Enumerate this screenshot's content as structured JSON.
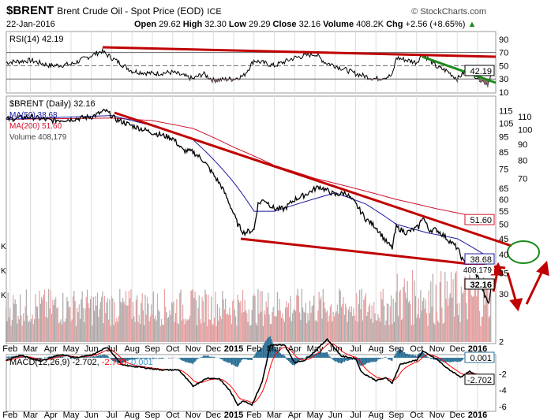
{
  "header": {
    "symbol": "$BRENT",
    "name": "Brent Crude Oil - Spot Price (EOD)",
    "exchange": "ICE",
    "copyright": "© StockCharts.com",
    "date": "22-Jan-2016",
    "open_label": "Open",
    "open": "29.62",
    "high_label": "High",
    "high": "32.30",
    "low_label": "Low",
    "low": "29.29",
    "close_label": "Close",
    "close": "32.16",
    "volume_label": "Volume",
    "volume": "408.2K",
    "chg_label": "Chg",
    "chg": "+2.56 (+8.65%)"
  },
  "colors": {
    "price": "#000000",
    "ma50": "#1a1aa0",
    "ma200": "#d0102a",
    "volume": "#e8a0a0",
    "macd": "#000000",
    "signal": "#ff0000",
    "hist": "#2a6f95",
    "trend": "#c00000",
    "green": "#1a8a1a"
  },
  "chart_data": [
    {
      "type": "line",
      "title": "RSI(14) 42.19",
      "label": "RSI(14)",
      "value": "42.19",
      "yticks": [
        "90",
        "70",
        "50",
        "30",
        "10"
      ],
      "ylim": [
        10,
        90
      ],
      "levels": [
        70,
        50,
        30
      ],
      "values": [
        [
          0.8,
          55
        ],
        [
          2,
          58
        ],
        [
          3,
          50
        ],
        [
          4,
          52
        ],
        [
          5.5,
          72
        ],
        [
          6,
          62
        ],
        [
          7,
          42
        ],
        [
          8,
          38
        ],
        [
          9,
          40
        ],
        [
          10,
          30
        ],
        [
          10.5,
          38
        ],
        [
          11,
          28
        ],
        [
          12,
          30
        ],
        [
          12.5,
          35
        ],
        [
          13,
          58
        ],
        [
          14,
          50
        ],
        [
          15,
          62
        ],
        [
          16,
          68
        ],
        [
          16.5,
          55
        ],
        [
          17,
          50
        ],
        [
          18,
          38
        ],
        [
          19,
          30
        ],
        [
          19.8,
          35
        ],
        [
          20,
          62
        ],
        [
          21,
          55
        ],
        [
          21.3,
          68
        ],
        [
          22,
          48
        ],
        [
          22.5,
          42
        ],
        [
          23,
          30
        ],
        [
          23.5,
          45
        ],
        [
          24,
          32
        ],
        [
          24.5,
          22
        ],
        [
          24.7,
          42.19
        ]
      ]
    },
    {
      "type": "line",
      "title": "$BRENT (Daily) 32.16",
      "price_label": "$BRENT (Daily) 32.16",
      "ma50_label": "MA(50) 38.68",
      "ma200_label": "MA(200) 51.60",
      "volume_label": "Volume 408,179",
      "yticks": [
        "115",
        "110",
        "105",
        "100",
        "95",
        "90",
        "85",
        "80",
        "75",
        "70",
        "65",
        "60",
        "55",
        "50",
        "45",
        "40",
        "35",
        "30"
      ],
      "scale": "log",
      "tags": {
        "ma200": "51.60",
        "ma50": "38.68",
        "volume": "408,179",
        "close": "32.16"
      },
      "price": [
        [
          0.8,
          108
        ],
        [
          2,
          110
        ],
        [
          3,
          107
        ],
        [
          4,
          108
        ],
        [
          5,
          110
        ],
        [
          5.7,
          115
        ],
        [
          6.2,
          108
        ],
        [
          7,
          103
        ],
        [
          8,
          98
        ],
        [
          9,
          94
        ],
        [
          9.5,
          86
        ],
        [
          10,
          85
        ],
        [
          10.5,
          80
        ],
        [
          11,
          72
        ],
        [
          11.4,
          66
        ],
        [
          11.8,
          58
        ],
        [
          12.2,
          50
        ],
        [
          12.5,
          47
        ],
        [
          13,
          48
        ],
        [
          13.2,
          58
        ],
        [
          13.5,
          60
        ],
        [
          14,
          56
        ],
        [
          14.5,
          56
        ],
        [
          15,
          60
        ],
        [
          15.5,
          62
        ],
        [
          16.2,
          66
        ],
        [
          16.6,
          64
        ],
        [
          17,
          62
        ],
        [
          17.5,
          63
        ],
        [
          18,
          58
        ],
        [
          18.5,
          52
        ],
        [
          19,
          49
        ],
        [
          19.5,
          44
        ],
        [
          19.8,
          42
        ],
        [
          20,
          49
        ],
        [
          20.5,
          47
        ],
        [
          21.1,
          49
        ],
        [
          21.3,
          53
        ],
        [
          21.6,
          48
        ],
        [
          22,
          48
        ],
        [
          22.5,
          45
        ],
        [
          23,
          42
        ],
        [
          23.3,
          38
        ],
        [
          23.7,
          37
        ],
        [
          24.1,
          33
        ],
        [
          24.4,
          29
        ],
        [
          24.55,
          28
        ],
        [
          24.7,
          32.16
        ]
      ],
      "ma50": [
        [
          0.8,
          108
        ],
        [
          6,
          111
        ],
        [
          8,
          103
        ],
        [
          10,
          93
        ],
        [
          12,
          68
        ],
        [
          13,
          55
        ],
        [
          14,
          55
        ],
        [
          15.5,
          59
        ],
        [
          17,
          63
        ],
        [
          18.5,
          58
        ],
        [
          20,
          50
        ],
        [
          21.5,
          47
        ],
        [
          23,
          45
        ],
        [
          24.7,
          38.68
        ]
      ],
      "ma200": [
        [
          0.8,
          108
        ],
        [
          6,
          109
        ],
        [
          8,
          107
        ],
        [
          10,
          101
        ],
        [
          12,
          88
        ],
        [
          14,
          77
        ],
        [
          16,
          70
        ],
        [
          18,
          65
        ],
        [
          20,
          60
        ],
        [
          22,
          56
        ],
        [
          24.7,
          51.6
        ]
      ]
    },
    {
      "type": "line",
      "title": "MACD(12,26,9) -2.702, -2.703, 0.001",
      "label": "MACD(12,26,9)",
      "macd_value": "-2.702,",
      "signal_value": "-2.703,",
      "hist_value": "0.001",
      "yticks": [
        "2",
        "-2",
        "-4",
        "-6"
      ],
      "ylim": [
        -6.5,
        2.5
      ],
      "macd": [
        [
          0.8,
          -0.3
        ],
        [
          1.5,
          0.3
        ],
        [
          2.5,
          -0.4
        ],
        [
          3.5,
          0.4
        ],
        [
          4.2,
          0
        ],
        [
          5,
          0.3
        ],
        [
          5.8,
          1.3
        ],
        [
          6.5,
          -0.9
        ],
        [
          7.5,
          -1.2
        ],
        [
          8.5,
          -1.5
        ],
        [
          9.3,
          -1.5
        ],
        [
          10,
          -3.5
        ],
        [
          10.7,
          -2.5
        ],
        [
          11.3,
          -2.6
        ],
        [
          11.8,
          -4
        ],
        [
          12.2,
          -5.8
        ],
        [
          12.5,
          -5.3
        ],
        [
          12.9,
          -5.8
        ],
        [
          13.4,
          -3
        ],
        [
          13.8,
          1.5
        ],
        [
          14.5,
          1.6
        ],
        [
          15,
          -0.6
        ],
        [
          15.5,
          -0.3
        ],
        [
          16,
          0.8
        ],
        [
          16.6,
          2.3
        ],
        [
          17.3,
          0.2
        ],
        [
          18,
          -0.1
        ],
        [
          18.3,
          -1.8
        ],
        [
          19,
          -2.8
        ],
        [
          19.5,
          -2.5
        ],
        [
          19.8,
          -3.1
        ],
        [
          20.2,
          -0.8
        ],
        [
          21,
          -0.3
        ],
        [
          21.3,
          0.8
        ],
        [
          22,
          -0.2
        ],
        [
          22.5,
          -1.3
        ],
        [
          23.2,
          -2.4
        ],
        [
          23.6,
          -1.7
        ],
        [
          24.2,
          -2.6
        ],
        [
          24.5,
          -3
        ],
        [
          24.7,
          -2.7
        ]
      ],
      "tags": {
        "hist": "0.001",
        "macd": "-2.702"
      }
    }
  ],
  "xaxis": {
    "months": [
      "Feb",
      "Mar",
      "Apr",
      "May",
      "Jun",
      "Jul",
      "Aug",
      "Sep",
      "Oct",
      "Nov",
      "Dec",
      "2015",
      "Feb",
      "Mar",
      "Apr",
      "May",
      "Jun",
      "Jul",
      "Aug",
      "Sep",
      "Oct",
      "Nov",
      "Dec",
      "2016"
    ]
  },
  "left_marks": [
    "K",
    "K",
    "K"
  ]
}
